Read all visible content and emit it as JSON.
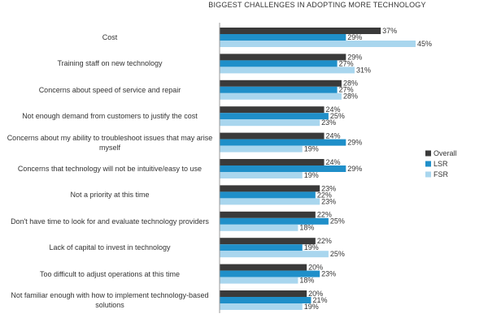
{
  "chart_data": {
    "type": "bar",
    "orientation": "horizontal",
    "title": "BIGGEST CHALLENGES IN ADOPTING MORE TECHNOLOGY",
    "categories": [
      "Cost",
      "Training staff on new technology",
      "Concerns about speed of service and repair",
      "Not enough demand from customers to justify the cost",
      "Concerns about my ability to troubleshoot issues that may arise myself",
      "Concerns that technology will not be intuitive/easy to use",
      "Not a priority at this time",
      "Don't have time to look for and evaluate technology providers",
      "Lack of capital to invest in technology",
      "Too difficult to adjust operations at this time",
      "Not familiar enough with how to implement technology-based solutions"
    ],
    "series": [
      {
        "name": "Overall",
        "color": "#3a3a3a",
        "values": [
          37,
          29,
          28,
          24,
          24,
          24,
          23,
          22,
          22,
          20,
          20
        ],
        "value_labels": [
          "37%",
          "29%",
          "28%",
          "24%",
          "24%",
          "24%",
          "23%",
          "22%",
          "22%",
          "20%",
          "20%"
        ]
      },
      {
        "name": "LSR",
        "color": "#1f8fc9",
        "values": [
          29,
          27,
          27,
          25,
          29,
          29,
          22,
          25,
          19,
          23,
          21
        ],
        "value_labels": [
          "29%",
          "27%",
          "27%",
          "25%",
          "29%",
          "29%",
          "22%",
          "25%",
          "19%",
          "23%",
          "21%"
        ]
      },
      {
        "name": "FSR",
        "color": "#a9d6ee",
        "values": [
          45,
          31,
          28,
          23,
          19,
          19,
          23,
          18,
          25,
          18,
          19
        ],
        "value_labels": [
          "45%",
          "31%",
          "28%",
          "23%",
          "19%",
          "19%",
          "23%",
          "18%",
          "25%",
          "18%",
          "19%"
        ]
      }
    ],
    "legend": "right"
  }
}
